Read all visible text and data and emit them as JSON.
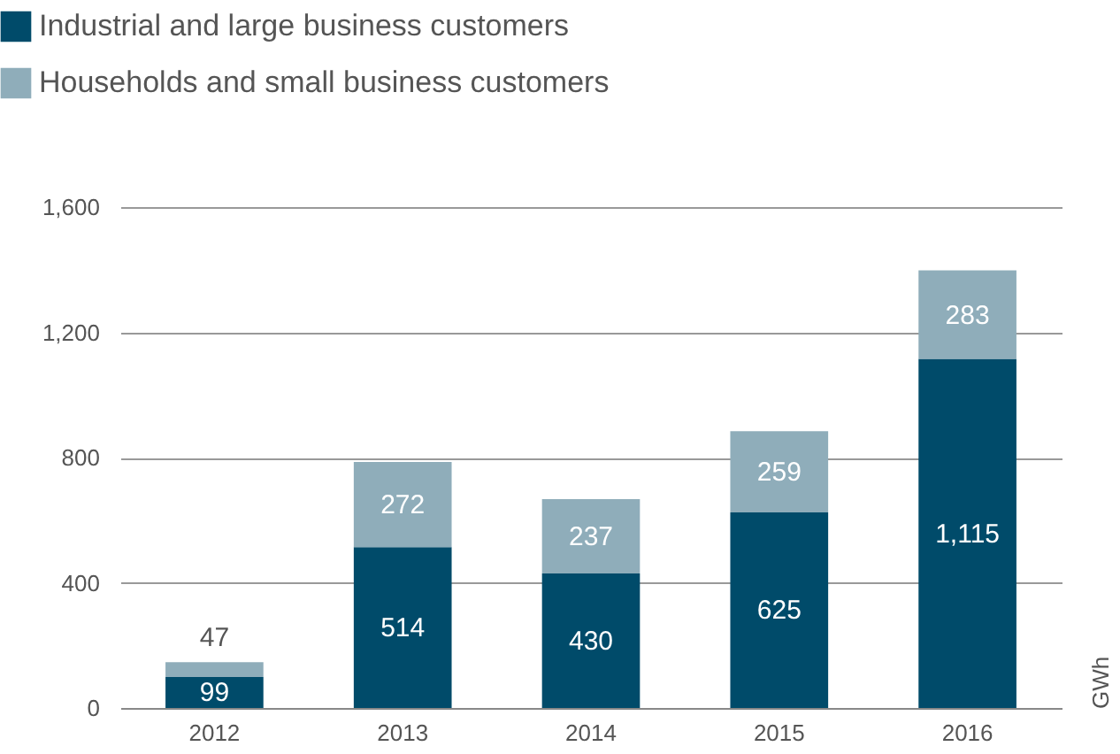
{
  "chart_data": {
    "type": "bar",
    "stacked": true,
    "categories": [
      "2012",
      "2013",
      "2014",
      "2015",
      "2016"
    ],
    "series": [
      {
        "name": "Industrial and large business customers",
        "color": "#004b6a",
        "values": [
          99,
          514,
          430,
          625,
          1115
        ],
        "value_labels": [
          "99",
          "514",
          "430",
          "625",
          "1,115"
        ]
      },
      {
        "name": "Households and small business customers",
        "color": "#8fadba",
        "values": [
          47,
          272,
          237,
          259,
          283
        ],
        "value_labels": [
          "47",
          "272",
          "237",
          "259",
          "283"
        ]
      }
    ],
    "ylim": [
      0,
      1600
    ],
    "yticks": [
      0,
      400,
      800,
      {
        "value": 1200,
        "label": "1,200"
      },
      {
        "value": 1600,
        "label": "1,600"
      }
    ],
    "ylabel": "GWh",
    "grid": "y",
    "legend": "top left"
  }
}
